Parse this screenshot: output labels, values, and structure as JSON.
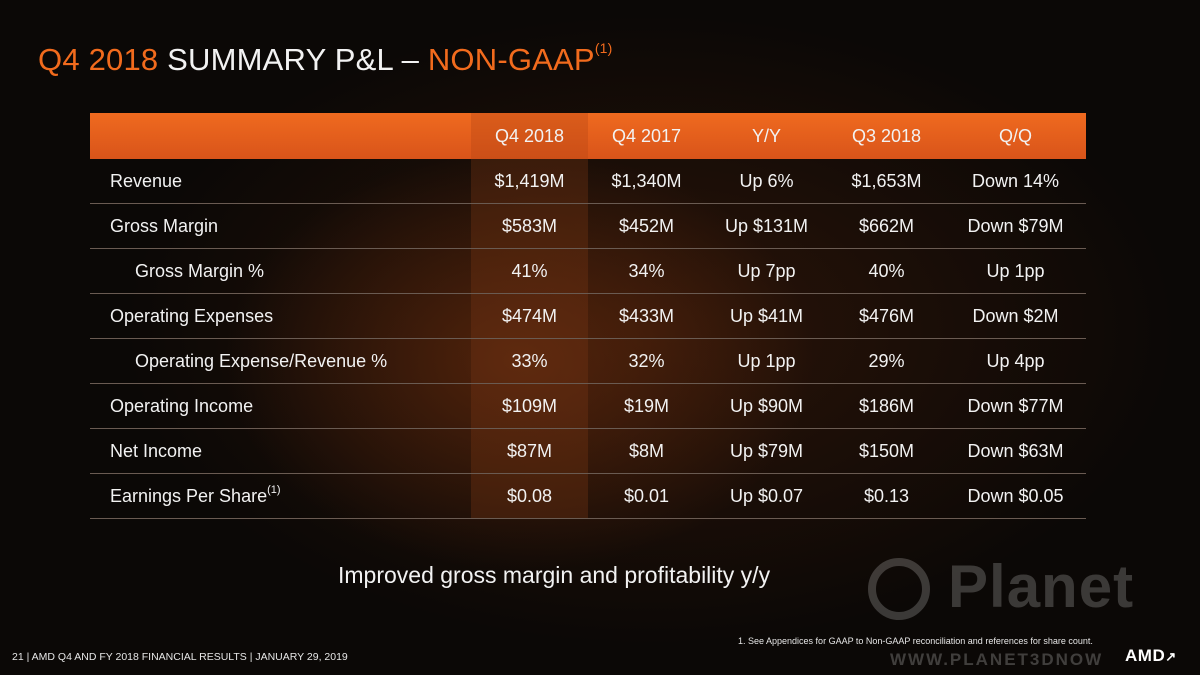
{
  "slide": {
    "title_part1": "Q4 2018",
    "title_part2": "SUMMARY P&L –",
    "title_part3": "NON-GAAP",
    "title_sup": "(1)"
  },
  "table": {
    "headers": [
      "Q4 2018",
      "Q4 2017",
      "Y/Y",
      "Q3 2018",
      "Q/Q"
    ],
    "rows": [
      {
        "label": "Revenue",
        "sup": "",
        "values": [
          "$1,419M",
          "$1,340M",
          "Up 6%",
          "$1,653M",
          "Down 14%"
        ]
      },
      {
        "label": "Gross Margin",
        "sup": "",
        "values": [
          "$583M",
          "$452M",
          "Up $131M",
          "$662M",
          "Down $79M"
        ]
      },
      {
        "label": "Gross Margin %",
        "sup": "",
        "values": [
          "41%",
          "34%",
          "Up 7pp",
          "40%",
          "Up 1pp"
        ]
      },
      {
        "label": "Operating Expenses",
        "sup": "",
        "values": [
          "$474M",
          "$433M",
          "Up $41M",
          "$476M",
          "Down $2M"
        ]
      },
      {
        "label": "Operating Expense/Revenue %",
        "sup": "",
        "values": [
          "33%",
          "32%",
          "Up 1pp",
          "29%",
          "Up 4pp"
        ]
      },
      {
        "label": "Operating Income",
        "sup": "",
        "values": [
          "$109M",
          "$19M",
          "Up $90M",
          "$186M",
          "Down $77M"
        ]
      },
      {
        "label": "Net Income",
        "sup": "",
        "values": [
          "$87M",
          "$8M",
          "Up $79M",
          "$150M",
          "Down $63M"
        ]
      },
      {
        "label": "Earnings Per Share",
        "sup": "(1)",
        "values": [
          "$0.08",
          "$0.01",
          "Up $0.07",
          "$0.13",
          "Down $0.05"
        ]
      }
    ]
  },
  "tagline": "Improved gross margin and profitability y/y",
  "footnote": "1.    See Appendices for GAAP to Non-GAAP reconciliation and references for share count.",
  "footer": "21   |  AMD Q4 AND FY 2018 FINANCIAL RESULTS  |  JANUARY 29, 2019",
  "logo": "AMD",
  "watermark": {
    "word": "Planet",
    "url": "WWW.PLANET3DNOW"
  },
  "colors": {
    "accent": "#f26b1d",
    "header_bg": "#e55f1c",
    "background": "#0b0806"
  }
}
